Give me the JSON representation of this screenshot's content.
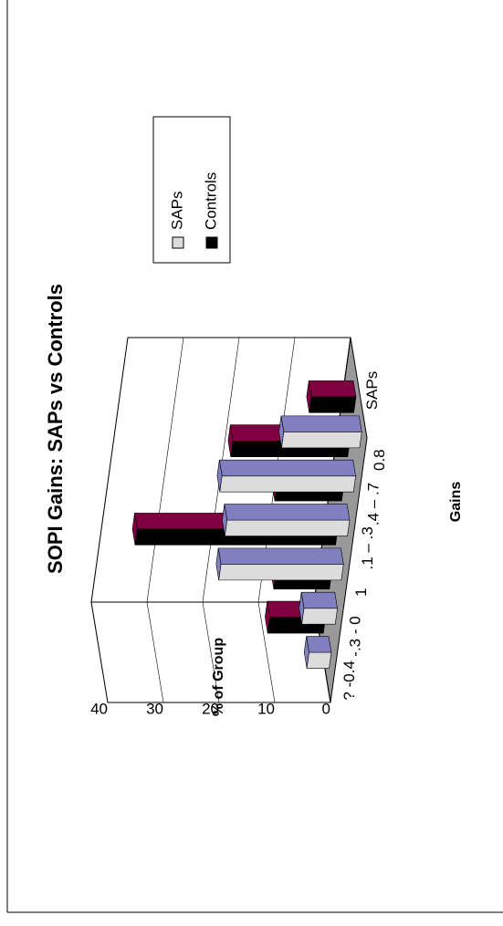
{
  "chart_data": {
    "type": "bar3d",
    "title": "SOPI Gains: SAPs vs Controls",
    "x_label": "Gains",
    "y_label": "% of Group",
    "categories": [
      "? -0.4",
      "-.3 - 0",
      "1",
      ".1 – .3",
      ".4 – .7",
      "0.8"
    ],
    "series": [
      {
        "name": "SAPs",
        "color": "#dcdcdc",
        "top_color": "#8080c0",
        "values": [
          4,
          6,
          22,
          22,
          24,
          14
        ]
      },
      {
        "name": "Controls",
        "color": "#000000",
        "top_color": "#800040",
        "values": [
          10,
          10,
          36,
          12,
          21,
          8
        ]
      }
    ],
    "ylim": [
      0,
      40
    ],
    "yticks": [
      0,
      10,
      20,
      30,
      40
    ],
    "grid": true
  }
}
